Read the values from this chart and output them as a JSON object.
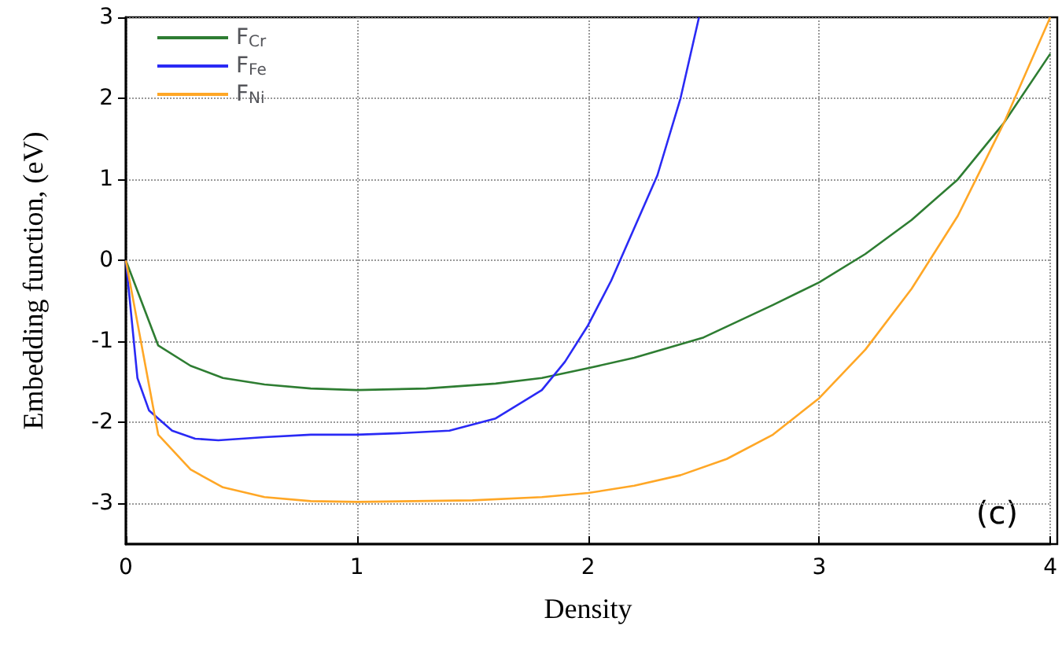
{
  "chart_data": {
    "type": "line",
    "xlabel": "Density",
    "ylabel": "Embedding function, (eV)",
    "xlim": [
      0,
      4
    ],
    "xticks": [
      0,
      1,
      2,
      3,
      4
    ],
    "ylim": [
      -3.5,
      3
    ],
    "yticks": [
      -3,
      -2,
      -1,
      0,
      1,
      2,
      3
    ],
    "grid": true,
    "legend": "top left",
    "marker": "none",
    "line_style": "solid",
    "annotations": [
      "(c)"
    ],
    "series": [
      {
        "name": "F$_{Cr}$",
        "color": "#2e7d32",
        "x": [
          0,
          0.14,
          0.28,
          0.42,
          0.6,
          0.8,
          1.0,
          1.3,
          1.6,
          1.8,
          2.0,
          2.2,
          2.5,
          2.8,
          3.0,
          3.2,
          3.4,
          3.6,
          3.8,
          4.0
        ],
        "values": [
          0,
          -1.05,
          -1.3,
          -1.45,
          -1.53,
          -1.58,
          -1.6,
          -1.58,
          -1.52,
          -1.45,
          -1.33,
          -1.2,
          -0.95,
          -0.55,
          -0.27,
          0.08,
          0.5,
          1.0,
          1.7,
          2.55
        ]
      },
      {
        "name": "F$_{Fe}$",
        "color": "#2a2af5",
        "x": [
          0,
          0.05,
          0.1,
          0.2,
          0.3,
          0.4,
          0.6,
          0.8,
          1.0,
          1.2,
          1.4,
          1.6,
          1.8,
          1.9,
          2.0,
          2.1,
          2.2,
          2.3,
          2.4,
          2.48
        ],
        "values": [
          0,
          -1.45,
          -1.85,
          -2.1,
          -2.2,
          -2.22,
          -2.18,
          -2.15,
          -2.15,
          -2.13,
          -2.1,
          -1.95,
          -1.6,
          -1.25,
          -0.8,
          -0.25,
          0.4,
          1.05,
          2.0,
          3.0
        ]
      },
      {
        "name": "F$_{Ni}$",
        "color": "#ffa726",
        "x": [
          0,
          0.14,
          0.28,
          0.42,
          0.6,
          0.8,
          1.0,
          1.5,
          1.8,
          2.0,
          2.2,
          2.4,
          2.6,
          2.8,
          3.0,
          3.2,
          3.4,
          3.6,
          3.8,
          4.0
        ],
        "values": [
          0,
          -2.15,
          -2.58,
          -2.8,
          -2.92,
          -2.97,
          -2.98,
          -2.96,
          -2.92,
          -2.87,
          -2.78,
          -2.65,
          -2.45,
          -2.15,
          -1.7,
          -1.1,
          -0.35,
          0.55,
          1.7,
          3.0
        ]
      }
    ]
  }
}
